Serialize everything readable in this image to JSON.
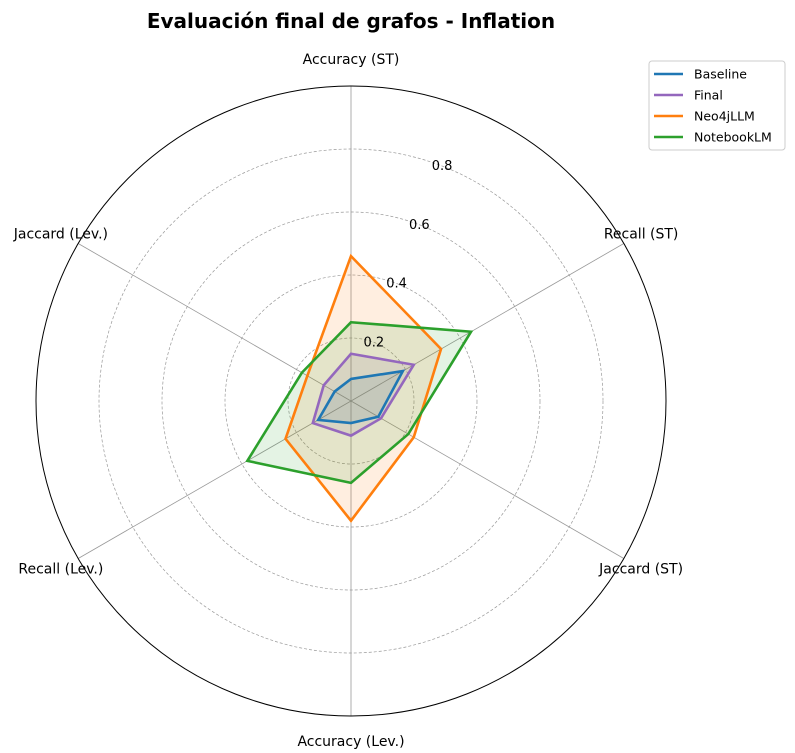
{
  "chart_data": {
    "type": "radar",
    "title": "Evaluación final de grafos - Inflation",
    "axes": [
      "Accuracy (ST)",
      "Recall (ST)",
      "Jaccard (ST)",
      "Accuracy (Lev.)",
      "Recall (Lev.)",
      "Jaccard (Lev.)"
    ],
    "rlim": [
      0,
      1.0
    ],
    "rticks": [
      0.2,
      0.4,
      0.6,
      0.8
    ],
    "rtick_labels": [
      "0.2",
      "0.4",
      "0.6",
      "0.8"
    ],
    "grid": true,
    "legend_position": "top-right",
    "series": [
      {
        "name": "Baseline",
        "color": "#1f77b4",
        "values": [
          0.07,
          0.19,
          0.1,
          0.07,
          0.12,
          0.06
        ]
      },
      {
        "name": "Final",
        "color": "#9467bd",
        "values": [
          0.15,
          0.23,
          0.11,
          0.11,
          0.14,
          0.1
        ]
      },
      {
        "name": "Neo4jLLM",
        "color": "#ff7f0e",
        "values": [
          0.46,
          0.33,
          0.23,
          0.38,
          0.24,
          0.16
        ]
      },
      {
        "name": "NotebookLM",
        "color": "#2ca02c",
        "values": [
          0.25,
          0.44,
          0.21,
          0.26,
          0.38,
          0.18
        ]
      }
    ]
  }
}
